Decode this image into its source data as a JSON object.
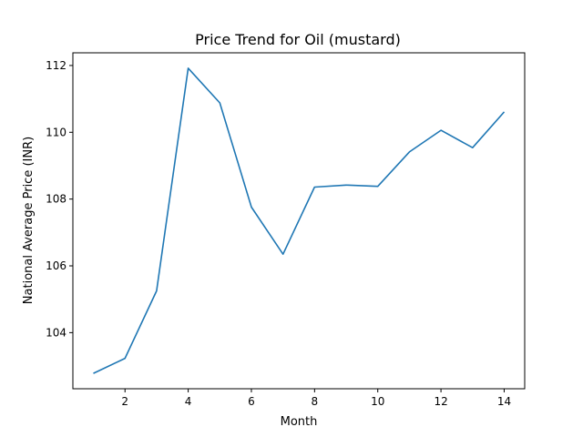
{
  "chart_data": {
    "type": "line",
    "title": "Price Trend for Oil (mustard)",
    "xlabel": "Month",
    "ylabel": "National Average Price (INR)",
    "x": [
      1,
      2,
      3,
      4,
      5,
      6,
      7,
      8,
      9,
      10,
      11,
      12,
      13,
      14
    ],
    "series": [
      {
        "values": [
          102.78,
          103.23,
          105.25,
          111.92,
          110.88,
          107.76,
          106.35,
          108.36,
          108.42,
          108.38,
          109.41,
          110.06,
          109.54,
          110.61
        ]
      }
    ],
    "xlim": [
      0.35,
      14.65
    ],
    "ylim": [
      102.32,
      112.38
    ],
    "xticks": [
      2,
      4,
      6,
      8,
      10,
      12,
      14
    ],
    "yticks": [
      104,
      106,
      108,
      110,
      112
    ],
    "grid": false,
    "line_color": "#1f77b4"
  }
}
